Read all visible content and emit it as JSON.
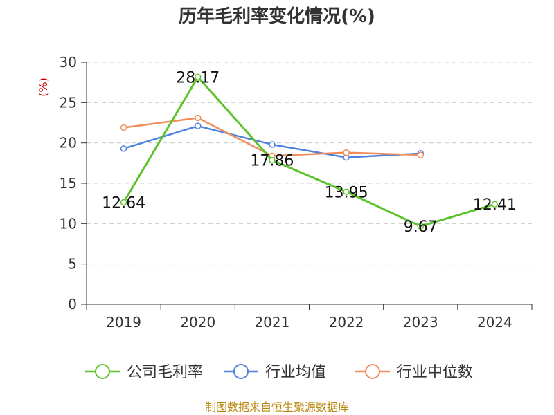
{
  "chart_data": {
    "type": "line",
    "title": "历年毛利率变化情况(%)",
    "ylabel": "(%)",
    "xlabel": "",
    "categories": [
      "2019",
      "2020",
      "2021",
      "2022",
      "2023",
      "2024"
    ],
    "ylim": [
      0,
      30
    ],
    "yticks": [
      0,
      5,
      10,
      15,
      20,
      25,
      30
    ],
    "grid": true,
    "legend_position": "bottom",
    "series": [
      {
        "name": "公司毛利率",
        "color": "#5cc32a",
        "values": [
          12.64,
          28.17,
          17.86,
          13.95,
          9.67,
          12.41
        ],
        "labels": [
          "12.64",
          "28.17",
          "17.86",
          "13.95",
          "9.67",
          "12.41"
        ]
      },
      {
        "name": "行业均值",
        "color": "#4f82dd",
        "values": [
          19.3,
          22.1,
          19.8,
          18.2,
          18.7,
          null
        ]
      },
      {
        "name": "行业中位数",
        "color": "#f08d5a",
        "values": [
          21.9,
          23.1,
          18.4,
          18.8,
          18.5,
          null
        ]
      }
    ]
  },
  "source": "制图数据来自恒生聚源数据库"
}
